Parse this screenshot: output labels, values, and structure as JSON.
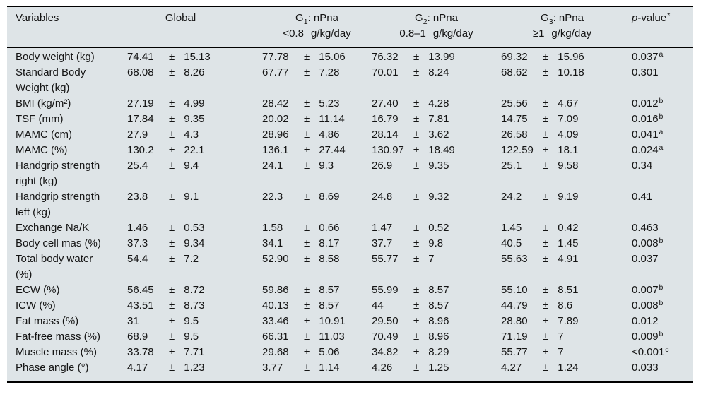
{
  "table": {
    "bg_color": "#dee4e7",
    "rule_color": "#000000",
    "plus_minus": "±",
    "header": {
      "variables_label": "Variables",
      "global_label": "Global",
      "groups": [
        {
          "g": "G",
          "sub": "1",
          "suffix": ": nPna",
          "range": "<0.8",
          "unit": "g/kg/day"
        },
        {
          "g": "G",
          "sub": "2",
          "suffix": ": nPna",
          "range": "0.8–1",
          "unit": "g/kg/day"
        },
        {
          "g": "G",
          "sub": "3",
          "suffix": ": nPna",
          "range": "≥1",
          "unit": "g/kg/day"
        }
      ],
      "p_italic": "p",
      "p_rest": "-value",
      "p_sup": "*"
    },
    "rows": [
      {
        "variable": "Body weight (kg)",
        "stats": [
          {
            "v": "74.41",
            "sd": "15.13"
          },
          {
            "v": "77.78",
            "sd": "15.06"
          },
          {
            "v": "76.32",
            "sd": "13.99"
          },
          {
            "v": "69.32",
            "sd": "15.96"
          }
        ],
        "p": "0.037",
        "p_sup": "a"
      },
      {
        "variable": "Standard Body Weight (kg)",
        "stats": [
          {
            "v": "68.08",
            "sd": "8.26"
          },
          {
            "v": "67.77",
            "sd": "7.28"
          },
          {
            "v": "70.01",
            "sd": "8.24"
          },
          {
            "v": "68.62",
            "sd": "10.18"
          }
        ],
        "p": "0.301",
        "p_sup": ""
      },
      {
        "variable": "BMI (kg/m²)",
        "stats": [
          {
            "v": "27.19",
            "sd": "4.99"
          },
          {
            "v": "28.42",
            "sd": "5.23"
          },
          {
            "v": "27.40",
            "sd": "4.28"
          },
          {
            "v": "25.56",
            "sd": "4.67"
          }
        ],
        "p": "0.012",
        "p_sup": "b"
      },
      {
        "variable": "TSF (mm)",
        "stats": [
          {
            "v": "17.84",
            "sd": "9.35"
          },
          {
            "v": "20.02",
            "sd": "11.14"
          },
          {
            "v": "16.79",
            "sd": "7.81"
          },
          {
            "v": "14.75",
            "sd": "7.09"
          }
        ],
        "p": "0.016",
        "p_sup": "b"
      },
      {
        "variable": "MAMC (cm)",
        "stats": [
          {
            "v": "27.9",
            "sd": "4.3"
          },
          {
            "v": "28.96",
            "sd": "4.86"
          },
          {
            "v": "28.14",
            "sd": "3.62"
          },
          {
            "v": "26.58",
            "sd": "4.09"
          }
        ],
        "p": "0.041",
        "p_sup": "a"
      },
      {
        "variable": "MAMC (%)",
        "stats": [
          {
            "v": "130.2",
            "sd": "22.1"
          },
          {
            "v": "136.1",
            "sd": "27.44"
          },
          {
            "v": "130.97",
            "sd": "18.49"
          },
          {
            "v": "122.59",
            "sd": "18.1"
          }
        ],
        "p": "0.024",
        "p_sup": "a"
      },
      {
        "variable": "Handgrip strength right (kg)",
        "stats": [
          {
            "v": "25.4",
            "sd": "9.4"
          },
          {
            "v": "24.1",
            "sd": "9.3"
          },
          {
            "v": "26.9",
            "sd": "9.35"
          },
          {
            "v": "25.1",
            "sd": "9.58"
          }
        ],
        "p": "0.34",
        "p_sup": ""
      },
      {
        "variable": "Handgrip strength left (kg)",
        "stats": [
          {
            "v": "23.8",
            "sd": "9.1"
          },
          {
            "v": "22.3",
            "sd": "8.69"
          },
          {
            "v": "24.8",
            "sd": "9.32"
          },
          {
            "v": "24.2",
            "sd": "9.19"
          }
        ],
        "p": "0.41",
        "p_sup": ""
      },
      {
        "variable": "Exchange Na/K",
        "stats": [
          {
            "v": "1.46",
            "sd": "0.53"
          },
          {
            "v": "1.58",
            "sd": "0.66"
          },
          {
            "v": "1.47",
            "sd": "0.52"
          },
          {
            "v": "1.45",
            "sd": "0.42"
          }
        ],
        "p": "0.463",
        "p_sup": ""
      },
      {
        "variable": "Body cell mas (%)",
        "stats": [
          {
            "v": "37.3",
            "sd": "9.34"
          },
          {
            "v": "34.1",
            "sd": "8.17"
          },
          {
            "v": "37.7",
            "sd": "9.8"
          },
          {
            "v": "40.5",
            "sd": "1.45"
          }
        ],
        "p": "0.008",
        "p_sup": "b"
      },
      {
        "variable": "Total body water (%)",
        "stats": [
          {
            "v": "54.4",
            "sd": "7.2"
          },
          {
            "v": "52.90",
            "sd": "8.58"
          },
          {
            "v": "55.77",
            "sd": "7"
          },
          {
            "v": "55.63",
            "sd": "4.91"
          }
        ],
        "p": "0.037",
        "p_sup": ""
      },
      {
        "variable": "ECW (%)",
        "stats": [
          {
            "v": "56.45",
            "sd": "8.72"
          },
          {
            "v": "59.86",
            "sd": "8.57"
          },
          {
            "v": "55.99",
            "sd": "8.57"
          },
          {
            "v": "55.10",
            "sd": "8.51"
          }
        ],
        "p": "0.007",
        "p_sup": "b"
      },
      {
        "variable": "ICW (%)",
        "stats": [
          {
            "v": "43.51",
            "sd": "8.73"
          },
          {
            "v": "40.13",
            "sd": "8.57"
          },
          {
            "v": "44",
            "sd": "8.57"
          },
          {
            "v": "44.79",
            "sd": "8.6"
          }
        ],
        "p": "0.008",
        "p_sup": "b"
      },
      {
        "variable": "Fat mass (%)",
        "stats": [
          {
            "v": "31",
            "sd": "9.5"
          },
          {
            "v": "33.46",
            "sd": "10.91"
          },
          {
            "v": "29.50",
            "sd": "8.96"
          },
          {
            "v": "28.80",
            "sd": "7.89"
          }
        ],
        "p": "0.012",
        "p_sup": ""
      },
      {
        "variable": "Fat-free mass (%)",
        "stats": [
          {
            "v": "68.9",
            "sd": "9.5"
          },
          {
            "v": "66.31",
            "sd": "11.03"
          },
          {
            "v": "70.49",
            "sd": "8.96"
          },
          {
            "v": "71.19",
            "sd": "7"
          }
        ],
        "p": "0.009",
        "p_sup": "b"
      },
      {
        "variable": "Muscle mass (%)",
        "stats": [
          {
            "v": "33.78",
            "sd": "7.71"
          },
          {
            "v": "29.68",
            "sd": "5.06"
          },
          {
            "v": "34.82",
            "sd": "8.29"
          },
          {
            "v": "55.77",
            "sd": "7"
          }
        ],
        "p": "<0.001",
        "p_sup": "c"
      },
      {
        "variable": "Phase angle (°)",
        "stats": [
          {
            "v": "4.17",
            "sd": "1.23"
          },
          {
            "v": "3.77",
            "sd": "1.14"
          },
          {
            "v": "4.26",
            "sd": "1.25"
          },
          {
            "v": "4.27",
            "sd": "1.24"
          }
        ],
        "p": "0.033",
        "p_sup": ""
      }
    ]
  }
}
